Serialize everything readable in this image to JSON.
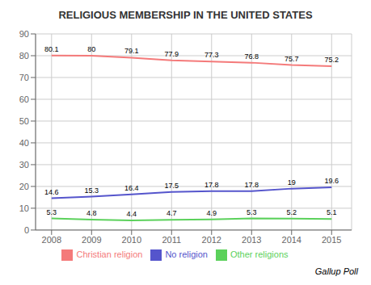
{
  "chart_data": {
    "type": "line",
    "title": "RELIGIOUS MEMBERSHIP IN THE UNITED STATES",
    "x": [
      2008,
      2009,
      2010,
      2011,
      2012,
      2013,
      2014,
      2015
    ],
    "series": [
      {
        "name": "Christian religion",
        "color": "#f47a7a",
        "values": [
          80.1,
          80,
          79.1,
          77.9,
          77.3,
          76.8,
          75.7,
          75.2
        ]
      },
      {
        "name": "Other religions",
        "color": "#5bd15b",
        "values": [
          5.3,
          4.8,
          4.4,
          4.7,
          4.9,
          5.3,
          5.2,
          5.1
        ]
      },
      {
        "name": "No religion",
        "color": "#5555cc",
        "values": [
          14.6,
          15.3,
          16.4,
          17.5,
          17.8,
          17.8,
          19,
          19.6
        ]
      }
    ],
    "xlim": [
      2007.6,
      2015.5
    ],
    "xticks": [
      2008,
      2009,
      2010,
      2011,
      2012,
      2013,
      2014,
      2015
    ],
    "ylim": [
      0,
      90
    ],
    "yticks": [
      0,
      10,
      20,
      30,
      40,
      50,
      60,
      70,
      80,
      90
    ],
    "grid": true,
    "legend": "bottom",
    "data_labels": true,
    "annotations": [
      "Gallup Poll"
    ]
  }
}
